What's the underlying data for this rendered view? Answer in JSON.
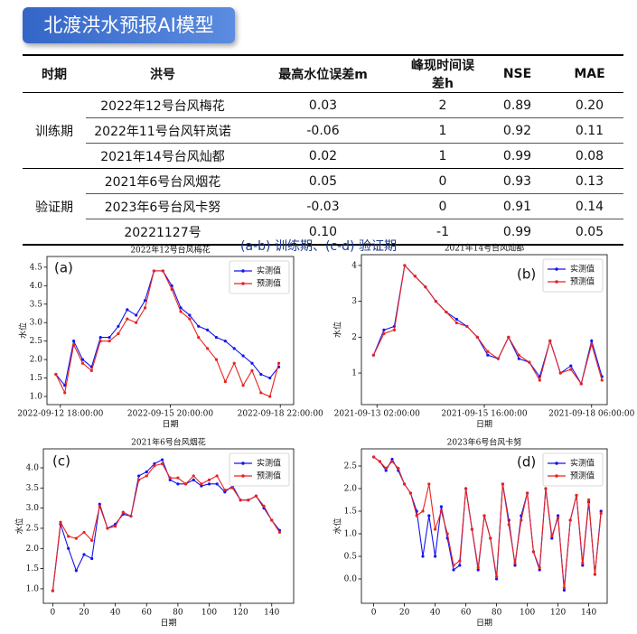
{
  "header": {
    "title": "北渡洪水预报AI模型"
  },
  "table": {
    "headers": [
      "时期",
      "洪号",
      "最高水位误差m",
      "峰现时间误差h",
      "NSE",
      "MAE"
    ],
    "groups": [
      {
        "period": "训练期",
        "rows": [
          [
            "2022年12号台风梅花",
            "0.03",
            "2",
            "0.89",
            "0.20"
          ],
          [
            "2022年11号台风轩岚诺",
            "-0.06",
            "1",
            "0.92",
            "0.11"
          ],
          [
            "2021年14号台风灿都",
            "0.02",
            "1",
            "0.99",
            "0.08"
          ]
        ]
      },
      {
        "period": "验证期",
        "rows": [
          [
            "2021年6号台风烟花",
            "0.05",
            "0",
            "0.93",
            "0.13"
          ],
          [
            "2023年6号台风卡努",
            "-0.03",
            "0",
            "0.91",
            "0.14"
          ],
          [
            "20221127号",
            "0.10",
            "-1",
            "0.99",
            "0.05"
          ]
        ]
      }
    ]
  },
  "caption": "(a-b) 训练期、(c-d) 验证期",
  "chart_data": [
    {
      "type": "line",
      "title": "2022年12号台风梅花",
      "annotation": "(a)",
      "xlabel": "日期",
      "ylabel": "水位",
      "legend": "upper right",
      "x": [
        "2022-09-12 15:00:00",
        "2022-09-12 21:00:00",
        "2022-09-13 03:00:00",
        "2022-09-13 09:00:00",
        "2022-09-13 15:00:00",
        "2022-09-13 21:00:00",
        "2022-09-14 03:00:00",
        "2022-09-14 09:00:00",
        "2022-09-14 15:00:00",
        "2022-09-14 21:00:00",
        "2022-09-15 03:00:00",
        "2022-09-15 09:00:00",
        "2022-09-15 15:00:00",
        "2022-09-15 21:00:00",
        "2022-09-16 03:00:00",
        "2022-09-16 09:00:00",
        "2022-09-16 15:00:00",
        "2022-09-16 21:00:00",
        "2022-09-17 03:00:00",
        "2022-09-17 09:00:00",
        "2022-09-17 15:00:00",
        "2022-09-17 21:00:00",
        "2022-09-18 03:00:00",
        "2022-09-18 09:00:00",
        "2022-09-18 15:00:00",
        "2022-09-18 21:00:00"
      ],
      "xlim": [
        "2022-09-12 09:00:00",
        "2022-09-19 07:00:00"
      ],
      "xticks": [
        "2022-09-12 18:00:00",
        "2022-09-15 20:00:00",
        "2022-09-18 22:00:00"
      ],
      "ylim": [
        0.78,
        4.79
      ],
      "yticks": [
        {
          "value": 1,
          "label": "1.0"
        },
        1.5,
        {
          "value": 2,
          "label": "2.0"
        },
        2.5,
        {
          "value": 3,
          "label": "3.0"
        },
        3.5,
        {
          "value": 4,
          "label": "4.0"
        },
        4.5
      ],
      "series": [
        {
          "name": "实测值",
          "color": "#1515f0",
          "values": [
            1.6,
            1.3,
            2.5,
            2.0,
            1.8,
            2.6,
            2.6,
            2.9,
            3.35,
            3.2,
            3.6,
            4.4,
            4.4,
            4.0,
            3.4,
            3.2,
            2.9,
            2.8,
            2.6,
            2.5,
            2.3,
            2.1,
            1.9,
            1.6,
            1.5,
            1.8
          ]
        },
        {
          "name": "预测值",
          "color": "#e8231f",
          "values": [
            1.6,
            1.1,
            2.4,
            1.9,
            1.7,
            2.5,
            2.5,
            2.7,
            3.1,
            3.0,
            3.4,
            4.4,
            4.4,
            3.9,
            3.3,
            3.1,
            2.6,
            2.3,
            2.0,
            1.4,
            1.9,
            1.3,
            1.7,
            1.1,
            1.0,
            1.9
          ]
        }
      ]
    },
    {
      "type": "line",
      "title": "2021年14号台风灿都",
      "annotation": "(b)",
      "xlabel": "日期",
      "ylabel": "水位",
      "legend": "upper right",
      "x": [
        "2021-09-13 00:00:00",
        "2021-09-13 06:00:00",
        "2021-09-13 12:00:00",
        "2021-09-13 18:00:00",
        "2021-09-14 00:00:00",
        "2021-09-14 06:00:00",
        "2021-09-14 12:00:00",
        "2021-09-14 18:00:00",
        "2021-09-15 00:00:00",
        "2021-09-15 06:00:00",
        "2021-09-15 12:00:00",
        "2021-09-15 18:00:00",
        "2021-09-16 00:00:00",
        "2021-09-16 06:00:00",
        "2021-09-16 12:00:00",
        "2021-09-16 18:00:00",
        "2021-09-17 00:00:00",
        "2021-09-17 06:00:00",
        "2021-09-17 12:00:00",
        "2021-09-17 18:00:00",
        "2021-09-18 00:00:00",
        "2021-09-18 06:00:00",
        "2021-09-18 12:00:00"
      ],
      "xlim": [
        "2021-09-12 17:00:00",
        "2021-09-18 15:00:00"
      ],
      "xticks": [
        "2021-09-13 02:00:00",
        "2021-09-15 16:00:00",
        "2021-09-18 06:00:00"
      ],
      "ylim": [
        0.12,
        4.3
      ],
      "yticks": [
        1,
        2,
        3,
        4
      ],
      "series": [
        {
          "name": "实测值",
          "color": "#1515f0",
          "values": [
            1.5,
            2.2,
            2.3,
            4.0,
            3.7,
            3.4,
            3.0,
            2.7,
            2.5,
            2.3,
            2.0,
            1.5,
            1.4,
            2.0,
            1.4,
            1.3,
            0.9,
            1.9,
            1.0,
            1.2,
            0.7,
            1.9,
            0.9
          ]
        },
        {
          "name": "预测值",
          "color": "#e8231f",
          "values": [
            1.5,
            2.1,
            2.2,
            4.0,
            3.7,
            3.4,
            3.0,
            2.7,
            2.4,
            2.3,
            2.0,
            1.6,
            1.4,
            2.0,
            1.5,
            1.3,
            0.8,
            1.9,
            1.0,
            1.1,
            0.7,
            1.8,
            0.8
          ]
        }
      ]
    },
    {
      "type": "line",
      "title": "2021年6号台风烟花",
      "annotation": "(c)",
      "xlabel": "日期",
      "ylabel": "水位",
      "legend": "upper right",
      "x": [
        0,
        5,
        10,
        15,
        20,
        25,
        30,
        35,
        40,
        45,
        50,
        55,
        60,
        65,
        70,
        75,
        80,
        85,
        90,
        95,
        100,
        105,
        110,
        115,
        120,
        125,
        130,
        135,
        140,
        145
      ],
      "xlim": [
        -6,
        154
      ],
      "xticks": [
        0,
        20,
        40,
        60,
        80,
        100,
        120,
        140
      ],
      "ylim": [
        0.64,
        4.47
      ],
      "yticks": [
        {
          "value": 1,
          "label": "1.0"
        },
        1.5,
        {
          "value": 2,
          "label": "2.0"
        },
        2.5,
        {
          "value": 3,
          "label": "3.0"
        },
        3.5,
        {
          "value": 4,
          "label": "4.0"
        }
      ],
      "series": [
        {
          "name": "实测值",
          "color": "#1515f0",
          "values": [
            0.95,
            2.6,
            2.0,
            1.45,
            1.85,
            1.75,
            3.1,
            2.5,
            2.6,
            2.85,
            2.8,
            3.8,
            3.9,
            4.1,
            4.2,
            3.7,
            3.6,
            3.6,
            3.7,
            3.55,
            3.6,
            3.6,
            3.4,
            3.55,
            3.2,
            3.2,
            3.3,
            3.0,
            2.7,
            2.45
          ]
        },
        {
          "name": "预测值",
          "color": "#e8231f",
          "values": [
            0.95,
            2.65,
            2.3,
            2.25,
            2.4,
            2.2,
            3.05,
            2.5,
            2.55,
            2.9,
            2.8,
            3.7,
            3.8,
            4.05,
            4.1,
            3.75,
            3.75,
            3.6,
            3.8,
            3.6,
            3.7,
            3.8,
            3.45,
            3.5,
            3.2,
            3.2,
            3.3,
            3.05,
            2.7,
            2.4
          ]
        }
      ]
    },
    {
      "type": "line",
      "title": "2023年6号台风卡努",
      "annotation": "(d)",
      "xlabel": "日期",
      "ylabel": "水位",
      "legend": "upper right",
      "x": [
        0,
        4,
        8,
        12,
        16,
        20,
        24,
        28,
        32,
        36,
        40,
        44,
        48,
        52,
        56,
        60,
        64,
        68,
        72,
        76,
        80,
        84,
        88,
        92,
        96,
        100,
        104,
        108,
        112,
        116,
        120,
        124,
        128,
        132,
        136,
        140,
        144,
        148
      ],
      "xlim": [
        -8,
        152
      ],
      "xticks": [
        0,
        20,
        40,
        60,
        80,
        100,
        120,
        140
      ],
      "ylim": [
        -0.54,
        2.88
      ],
      "yticks": [
        {
          "value": 0,
          "label": "0.0"
        },
        0.5,
        {
          "value": 1,
          "label": "1.0"
        },
        1.5,
        {
          "value": 2,
          "label": "2.0"
        },
        2.5
      ],
      "series": [
        {
          "name": "实测值",
          "color": "#1515f0",
          "values": [
            2.7,
            2.6,
            2.4,
            2.65,
            2.4,
            2.1,
            1.9,
            1.5,
            0.5,
            1.4,
            0.5,
            1.6,
            0.9,
            0.2,
            0.3,
            2.0,
            1.1,
            0.2,
            1.4,
            0.9,
            0,
            2.1,
            1.3,
            0.3,
            1.4,
            1.9,
            0.6,
            0.2,
            2.0,
            0.9,
            1.4,
            -0.25,
            1.3,
            1.85,
            0.3,
            1.7,
            0.1,
            1.5
          ]
        },
        {
          "name": "预测值",
          "color": "#e8231f",
          "values": [
            2.7,
            2.6,
            2.45,
            2.6,
            2.45,
            2.1,
            1.9,
            1.4,
            1.5,
            2.1,
            1.1,
            1.5,
            1.0,
            0.3,
            0.4,
            2.0,
            1.1,
            0.25,
            1.4,
            0.9,
            0.05,
            2.1,
            1.2,
            0.35,
            1.3,
            1.9,
            0.6,
            0.25,
            2.0,
            0.95,
            1.35,
            -0.2,
            1.3,
            1.85,
            0.35,
            1.75,
            0.1,
            1.45
          ]
        }
      ]
    }
  ]
}
